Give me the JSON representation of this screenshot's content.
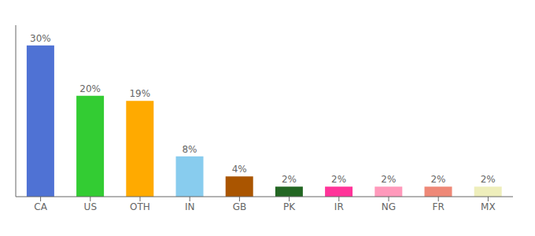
{
  "chart_data": {
    "type": "bar",
    "categories": [
      "CA",
      "US",
      "OTH",
      "IN",
      "GB",
      "PK",
      "IR",
      "NG",
      "FR",
      "MX"
    ],
    "values": [
      30,
      20,
      19,
      8,
      4,
      2,
      2,
      2,
      2,
      2
    ],
    "value_labels": [
      "30%",
      "20%",
      "19%",
      "8%",
      "4%",
      "2%",
      "2%",
      "2%",
      "2%",
      "2%"
    ],
    "colors": [
      "#4f72d4",
      "#33cc33",
      "#ffaa00",
      "#88ccee",
      "#aa5500",
      "#226622",
      "#ff3399",
      "#ff99bb",
      "#ee8877",
      "#eeeebb"
    ],
    "ylim": [
      0,
      34
    ],
    "grid": false,
    "data_labels": true,
    "tick_labels": "x"
  }
}
